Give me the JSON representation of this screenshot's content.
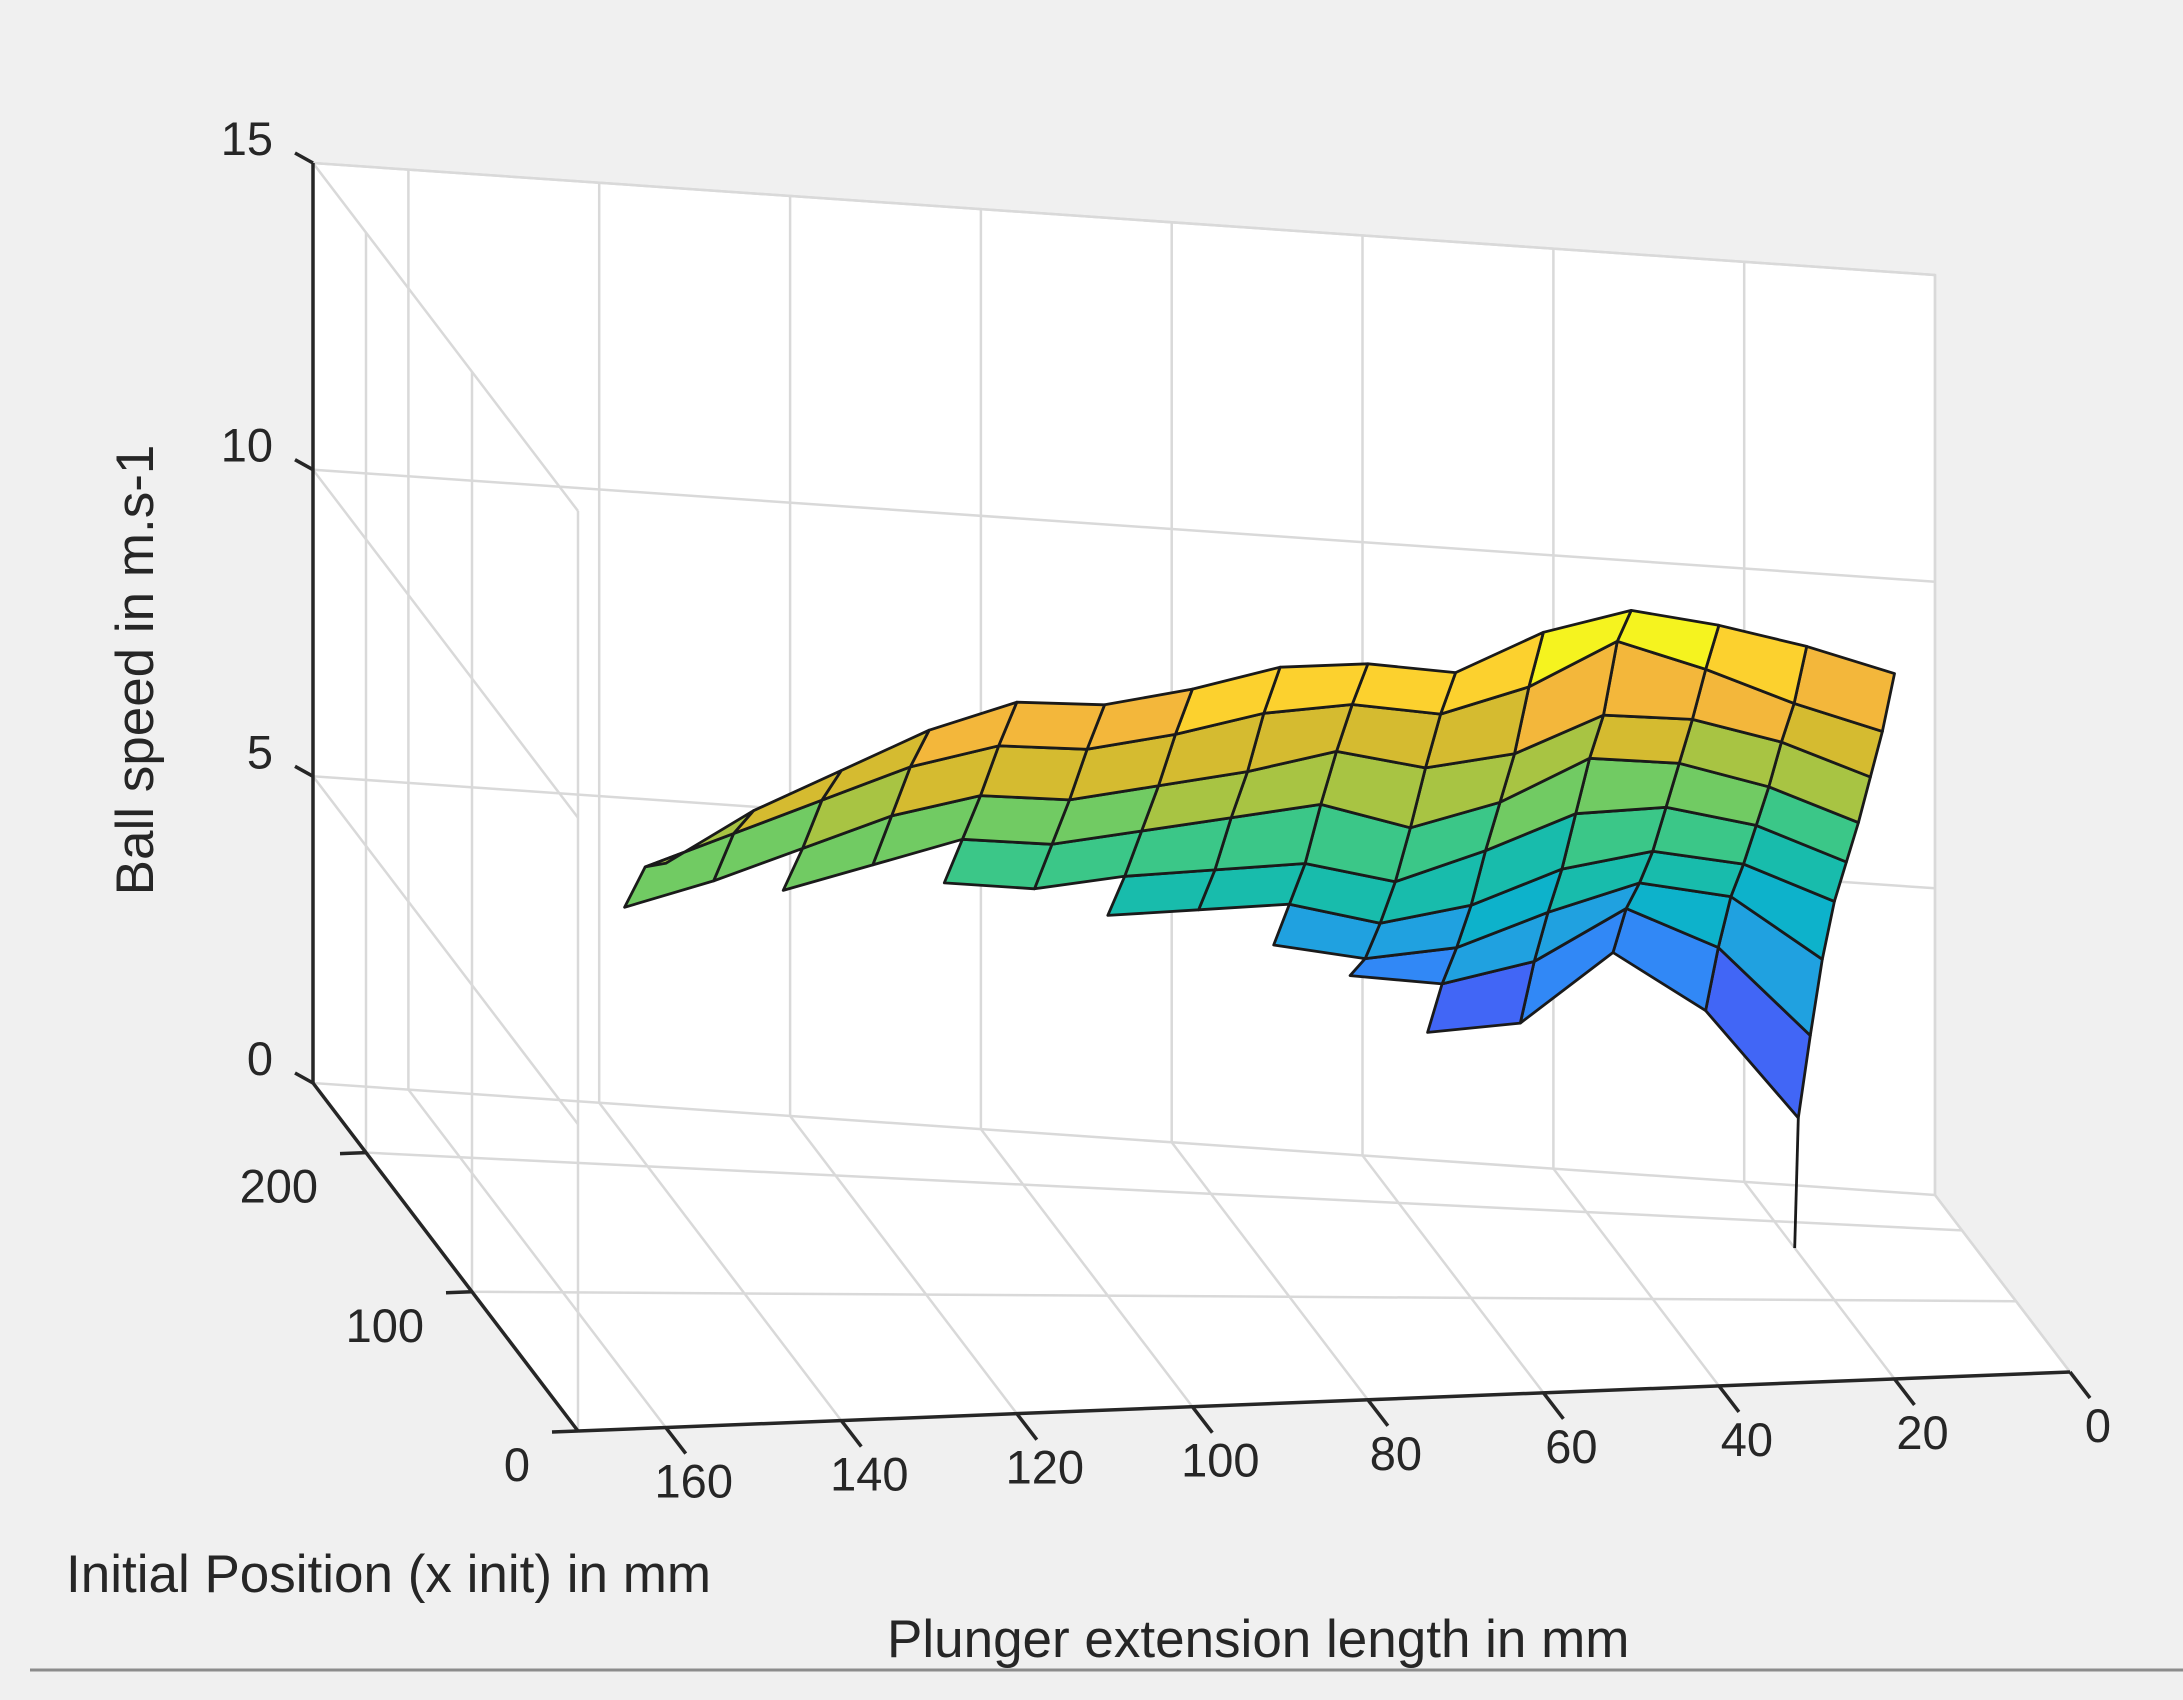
{
  "chart_data": {
    "type": "surface",
    "title": "",
    "xlabel": "Plunger extension length in mm",
    "ylabel": "Initial Position (x init) in mm",
    "zlabel": "Ball speed in m.s-1",
    "xlim": [
      0,
      170
    ],
    "ylim": [
      0,
      250
    ],
    "zlim": [
      0,
      15
    ],
    "x_ticks": [
      "0",
      "20",
      "40",
      "60",
      "80",
      "100",
      "120",
      "140",
      "160"
    ],
    "y_ticks": [
      "0",
      "100",
      "200"
    ],
    "z_ticks": [
      "0",
      "5",
      "10",
      "15"
    ],
    "plunger_mm": [
      20,
      30,
      40,
      50,
      60,
      70,
      80,
      90,
      100,
      110,
      120,
      130,
      140,
      150,
      160
    ],
    "x_init_mm": [
      0,
      20,
      40,
      60,
      80,
      100,
      120,
      140,
      160
    ],
    "ball_speed": [
      [
        11.5,
        12.0,
        12.4,
        12.7,
        12.4,
        11.8,
        12.0,
        12.0,
        11.7,
        11.5,
        11.6,
        11.2,
        10.6,
        10.0,
        9.2
      ],
      [
        10.3,
        10.8,
        11.4,
        11.9,
        11.2,
        10.8,
        11.0,
        10.9,
        10.6,
        10.4,
        10.5,
        10.2,
        9.7,
        9.2,
        8.7
      ],
      [
        9.3,
        9.9,
        10.3,
        10.4,
        9.8,
        9.6,
        9.9,
        9.6,
        9.4,
        9.2,
        9.3,
        9.0,
        8.5,
        8.0,
        7.6
      ],
      [
        8.3,
        8.9,
        9.3,
        9.4,
        8.7,
        8.3,
        8.7,
        8.5,
        8.3,
        8.1,
        8.2,
        7.8,
        7.4,
        null,
        null
      ],
      [
        7.4,
        8.0,
        8.3,
        8.2,
        7.6,
        7.1,
        7.4,
        7.3,
        7.2,
        7.0,
        7.1,
        null,
        null,
        null,
        null
      ],
      [
        6.5,
        7.1,
        7.3,
        7.0,
        6.4,
        6.1,
        6.4,
        6.3,
        6.2,
        null,
        null,
        null,
        null,
        null,
        null
      ],
      [
        5.3,
        6.3,
        6.5,
        6.0,
        5.4,
        5.2,
        5.4,
        null,
        null,
        null,
        null,
        null,
        null,
        null,
        null
      ],
      [
        3.8,
        5.2,
        5.8,
        4.9,
        4.5,
        4.6,
        null,
        null,
        null,
        null,
        null,
        null,
        null,
        null,
        null
      ],
      [
        2.2,
        3.9,
        4.8,
        3.6,
        3.4,
        null,
        null,
        null,
        null,
        null,
        null,
        null,
        null,
        null,
        null
      ]
    ],
    "colormap": [
      "#3e26a8",
      "#4433d6",
      "#4166f6",
      "#3188f6",
      "#20a1e0",
      "#0db2cb",
      "#18bcac",
      "#3bc788",
      "#71cb63",
      "#a8c443",
      "#d5bb30",
      "#f3b73b",
      "#fcd12e",
      "#f5f31f"
    ]
  }
}
